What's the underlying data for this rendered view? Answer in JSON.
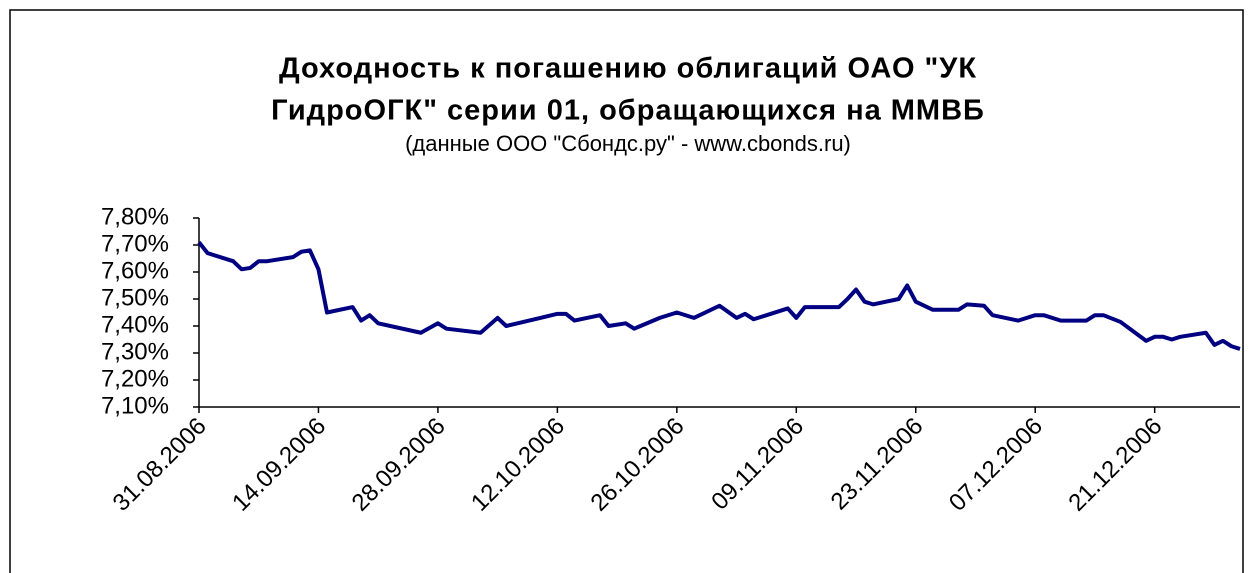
{
  "chart_data": {
    "type": "line",
    "title": [
      "Доходность к погашению облигаций ОАО \"УК",
      "ГидроОГК\" серии 01, обращающихся на ММВБ"
    ],
    "subtitle": "(данные ООО \"Сбондс.ру\" - www.cbonds.ru)",
    "x": [
      "31.08.2006",
      "01.09.2006",
      "04.09.2006",
      "05.09.2006",
      "06.09.2006",
      "07.09.2006",
      "08.09.2006",
      "11.09.2006",
      "12.09.2006",
      "13.09.2006",
      "14.09.2006",
      "15.09.2006",
      "18.09.2006",
      "19.09.2006",
      "20.09.2006",
      "21.09.2006",
      "26.09.2006",
      "28.09.2006",
      "29.09.2006",
      "03.10.2006",
      "05.10.2006",
      "06.10.2006",
      "10.10.2006",
      "12.10.2006",
      "13.10.2006",
      "14.10.2006",
      "17.10.2006",
      "18.10.2006",
      "20.10.2006",
      "21.10.2006",
      "24.10.2006",
      "26.10.2006",
      "28.10.2006",
      "31.10.2006",
      "02.11.2006",
      "03.11.2006",
      "04.11.2006",
      "08.11.2006",
      "09.11.2006",
      "10.11.2006",
      "14.11.2006",
      "15.11.2006",
      "16.11.2006",
      "17.11.2006",
      "18.11.2006",
      "21.11.2006",
      "22.11.2006",
      "23.11.2006",
      "25.11.2006",
      "28.11.2006",
      "29.11.2006",
      "01.12.2006",
      "02.12.2006",
      "05.12.2006",
      "07.12.2006",
      "08.12.2006",
      "10.12.2006",
      "13.12.2006",
      "14.12.2006",
      "15.12.2006",
      "17.12.2006",
      "20.12.2006",
      "21.12.2006",
      "22.12.2006",
      "23.12.2006",
      "24.12.2006",
      "27.12.2006",
      "28.12.2006",
      "29.12.2006",
      "30.12.2006",
      "31.12.2006"
    ],
    "series": [
      {
        "name": "Доходность",
        "color": "#000080",
        "values": [
          7.71,
          7.67,
          7.64,
          7.61,
          7.615,
          7.64,
          7.64,
          7.655,
          7.675,
          7.68,
          7.61,
          7.45,
          7.47,
          7.42,
          7.44,
          7.41,
          7.375,
          7.41,
          7.39,
          7.375,
          7.43,
          7.4,
          7.43,
          7.445,
          7.445,
          7.42,
          7.44,
          7.4,
          7.41,
          7.39,
          7.43,
          7.45,
          7.43,
          7.475,
          7.43,
          7.445,
          7.425,
          7.465,
          7.43,
          7.47,
          7.47,
          7.5,
          7.535,
          7.49,
          7.48,
          7.5,
          7.55,
          7.49,
          7.46,
          7.46,
          7.48,
          7.475,
          7.44,
          7.42,
          7.44,
          7.44,
          7.42,
          7.42,
          7.44,
          7.44,
          7.415,
          7.345,
          7.36,
          7.36,
          7.35,
          7.36,
          7.375,
          7.33,
          7.345,
          7.325,
          7.315
        ]
      }
    ],
    "xlim": [
      "31.08.2006",
      "31.12.2006"
    ],
    "xticks": [
      "31.08.2006",
      "14.09.2006",
      "28.09.2006",
      "12.10.2006",
      "26.10.2006",
      "09.11.2006",
      "23.11.2006",
      "07.12.2006",
      "21.12.2006"
    ],
    "ylim": [
      7.1,
      7.8
    ],
    "yticks": [
      {
        "value": 7.1,
        "label": "7,10%"
      },
      {
        "value": 7.2,
        "label": "7,20%"
      },
      {
        "value": 7.3,
        "label": "7,30%"
      },
      {
        "value": 7.4,
        "label": "7,40%"
      },
      {
        "value": 7.5,
        "label": "7,50%"
      },
      {
        "value": 7.6,
        "label": "7,60%"
      },
      {
        "value": 7.7,
        "label": "7,70%"
      },
      {
        "value": 7.8,
        "label": "7,80%"
      }
    ],
    "grid": false
  }
}
